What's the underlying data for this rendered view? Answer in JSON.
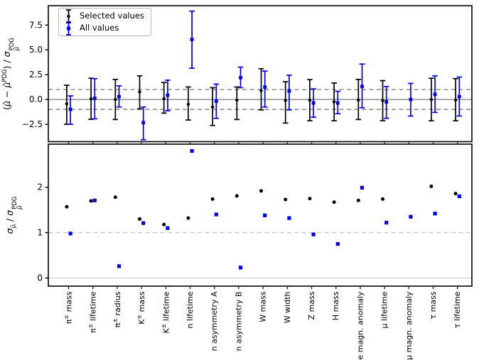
{
  "page": {
    "background": "#ffffff"
  },
  "colors": {
    "selected": "#000000",
    "all": "#0000ee",
    "reference_gray": "#7a7a7a",
    "reference_light": "#c6c6c6",
    "zero_light": "#d4d4d4",
    "frame": "#000000",
    "text": "#000000"
  },
  "legend": {
    "items": [
      {
        "label": "Selected values",
        "series": "selected",
        "marker": "errorbar-dot"
      },
      {
        "label": "All values",
        "series": "all",
        "marker": "errorbar-square"
      }
    ]
  },
  "labels": {
    "top_ylabel_text": "(μ̂ − μ̂^PDG) / σ_μ̂^PDG",
    "bottom_ylabel_text": "σ_μ̂ / σ_μ̂^PDG",
    "top_ylabel_parts": [
      {
        "t": "("
      },
      {
        "t": "μ̂",
        "i": 1
      },
      {
        "t": " − "
      },
      {
        "t": "μ̂",
        "i": 1
      },
      {
        "p": "sup",
        "t": "PDG"
      },
      {
        "t": ") / "
      },
      {
        "t": "σ",
        "i": 1
      },
      {
        "stack": {
          "top": "PDG",
          "bot": "μ̂"
        }
      }
    ],
    "bottom_ylabel_parts": [
      {
        "t": "σ",
        "i": 1
      },
      {
        "p": "sub",
        "t": "μ̂"
      },
      {
        "t": " / "
      },
      {
        "t": "σ",
        "i": 1
      },
      {
        "stack": {
          "top": "PDG",
          "bot": "μ̂"
        }
      }
    ]
  },
  "chart_data": [
    {
      "type": "errorbar",
      "panel": "top",
      "ylabel": "(μ̂ − μ̂^PDG) / σ_μ̂^PDG",
      "ylim": [
        -4.25,
        9.45
      ],
      "yticks": [
        -2.5,
        0.0,
        2.5,
        5.0,
        7.5
      ],
      "ytick_labels": [
        "−2.5",
        "0.0",
        "2.5",
        "5.0",
        "7.5"
      ],
      "grid": false,
      "legend_position": "upper left",
      "reference_lines": [
        {
          "y": 0,
          "style": "solid",
          "color": "reference_gray"
        },
        {
          "y": 1,
          "style": "dashed",
          "color": "reference_gray"
        },
        {
          "y": -1,
          "style": "dashed",
          "color": "reference_gray"
        }
      ],
      "categories": [
        "π± mass",
        "π± lifetime",
        "π± radius",
        "K± mass",
        "K± lifetime",
        "n lifetime",
        "n asymmetry A",
        "n asymmetry B",
        "W mass",
        "W width",
        "Z mass",
        "H mass",
        "e magn. anomaly",
        "μ lifetime",
        "μ magn. anomaly",
        "τ mass",
        "τ lifetime"
      ],
      "series": [
        {
          "name": "Selected values",
          "color": "selected",
          "marker": "circle",
          "points": [
            [
              -0.43,
              -2.5,
              1.43
            ],
            [
              0.07,
              -2.0,
              2.14
            ],
            [
              0.0,
              -2.02,
              2.02
            ],
            [
              0.76,
              -0.95,
              2.38
            ],
            [
              0.07,
              -1.38,
              1.71
            ],
            [
              -0.48,
              -2.07,
              1.26
            ],
            [
              -0.76,
              -2.62,
              1.19
            ],
            [
              -0.07,
              -2.02,
              1.26
            ],
            [
              0.9,
              -1.05,
              3.1
            ],
            [
              -0.1,
              -2.38,
              1.79
            ],
            [
              -0.07,
              -2.14,
              2.0
            ],
            [
              -0.24,
              -2.14,
              1.66
            ],
            [
              -0.05,
              -2.02,
              2.02
            ],
            [
              -0.12,
              -2.14,
              1.9
            ],
            null,
            [
              0.0,
              -2.14,
              2.14
            ],
            [
              -0.05,
              -2.14,
              2.1
            ]
          ]
        },
        {
          "name": "All values",
          "color": "all",
          "marker": "square",
          "points": [
            [
              -1.0,
              -2.5,
              0.36
            ],
            [
              0.12,
              -1.95,
              2.1
            ],
            [
              0.29,
              -0.76,
              1.38
            ],
            [
              -2.33,
              -4.05,
              -0.76
            ],
            [
              0.43,
              -1.14,
              1.95
            ],
            [
              6.05,
              3.15,
              8.9
            ],
            [
              -0.17,
              -1.9,
              1.55
            ],
            [
              2.2,
              1.19,
              3.26
            ],
            [
              1.24,
              -0.76,
              2.86
            ],
            [
              0.85,
              -1.05,
              2.45
            ],
            [
              -0.36,
              -1.79,
              1.07
            ],
            [
              -0.36,
              -1.43,
              0.83
            ],
            [
              1.31,
              -0.83,
              3.57
            ],
            [
              -0.24,
              -1.9,
              1.31
            ],
            [
              0.0,
              -1.67,
              1.62
            ],
            [
              0.52,
              -1.31,
              2.38
            ],
            [
              0.29,
              -1.67,
              2.26
            ]
          ]
        }
      ]
    },
    {
      "type": "scatter",
      "panel": "bottom",
      "ylabel": "σ_μ̂ / σ_μ̂^PDG",
      "ylim": [
        -0.18,
        2.95
      ],
      "yticks": [
        0,
        1,
        2
      ],
      "ytick_labels": [
        "0",
        "1",
        "2"
      ],
      "grid": false,
      "reference_lines": [
        {
          "y": 1,
          "style": "dashed",
          "color": "reference_light"
        },
        {
          "y": 0,
          "style": "solid",
          "color": "zero_light"
        }
      ],
      "categories": [
        "π± mass",
        "π± lifetime",
        "π± radius",
        "K± mass",
        "K± lifetime",
        "n lifetime",
        "n asymmetry A",
        "n asymmetry B",
        "W mass",
        "W width",
        "Z mass",
        "H mass",
        "e magn. anomaly",
        "μ lifetime",
        "μ magn. anomaly",
        "τ mass",
        "τ lifetime"
      ],
      "series": [
        {
          "name": "Selected values",
          "color": "selected",
          "marker": "circle",
          "values": [
            1.57,
            1.7,
            1.78,
            1.3,
            1.18,
            1.32,
            1.74,
            1.81,
            1.92,
            1.73,
            1.75,
            1.67,
            1.71,
            1.74,
            null,
            2.02,
            1.86
          ]
        },
        {
          "name": "All values",
          "color": "all",
          "marker": "square",
          "values": [
            0.98,
            1.71,
            0.26,
            1.21,
            1.1,
            2.8,
            1.4,
            0.23,
            1.38,
            1.32,
            0.96,
            0.75,
            1.99,
            1.22,
            1.35,
            1.42,
            1.8
          ]
        }
      ]
    }
  ]
}
